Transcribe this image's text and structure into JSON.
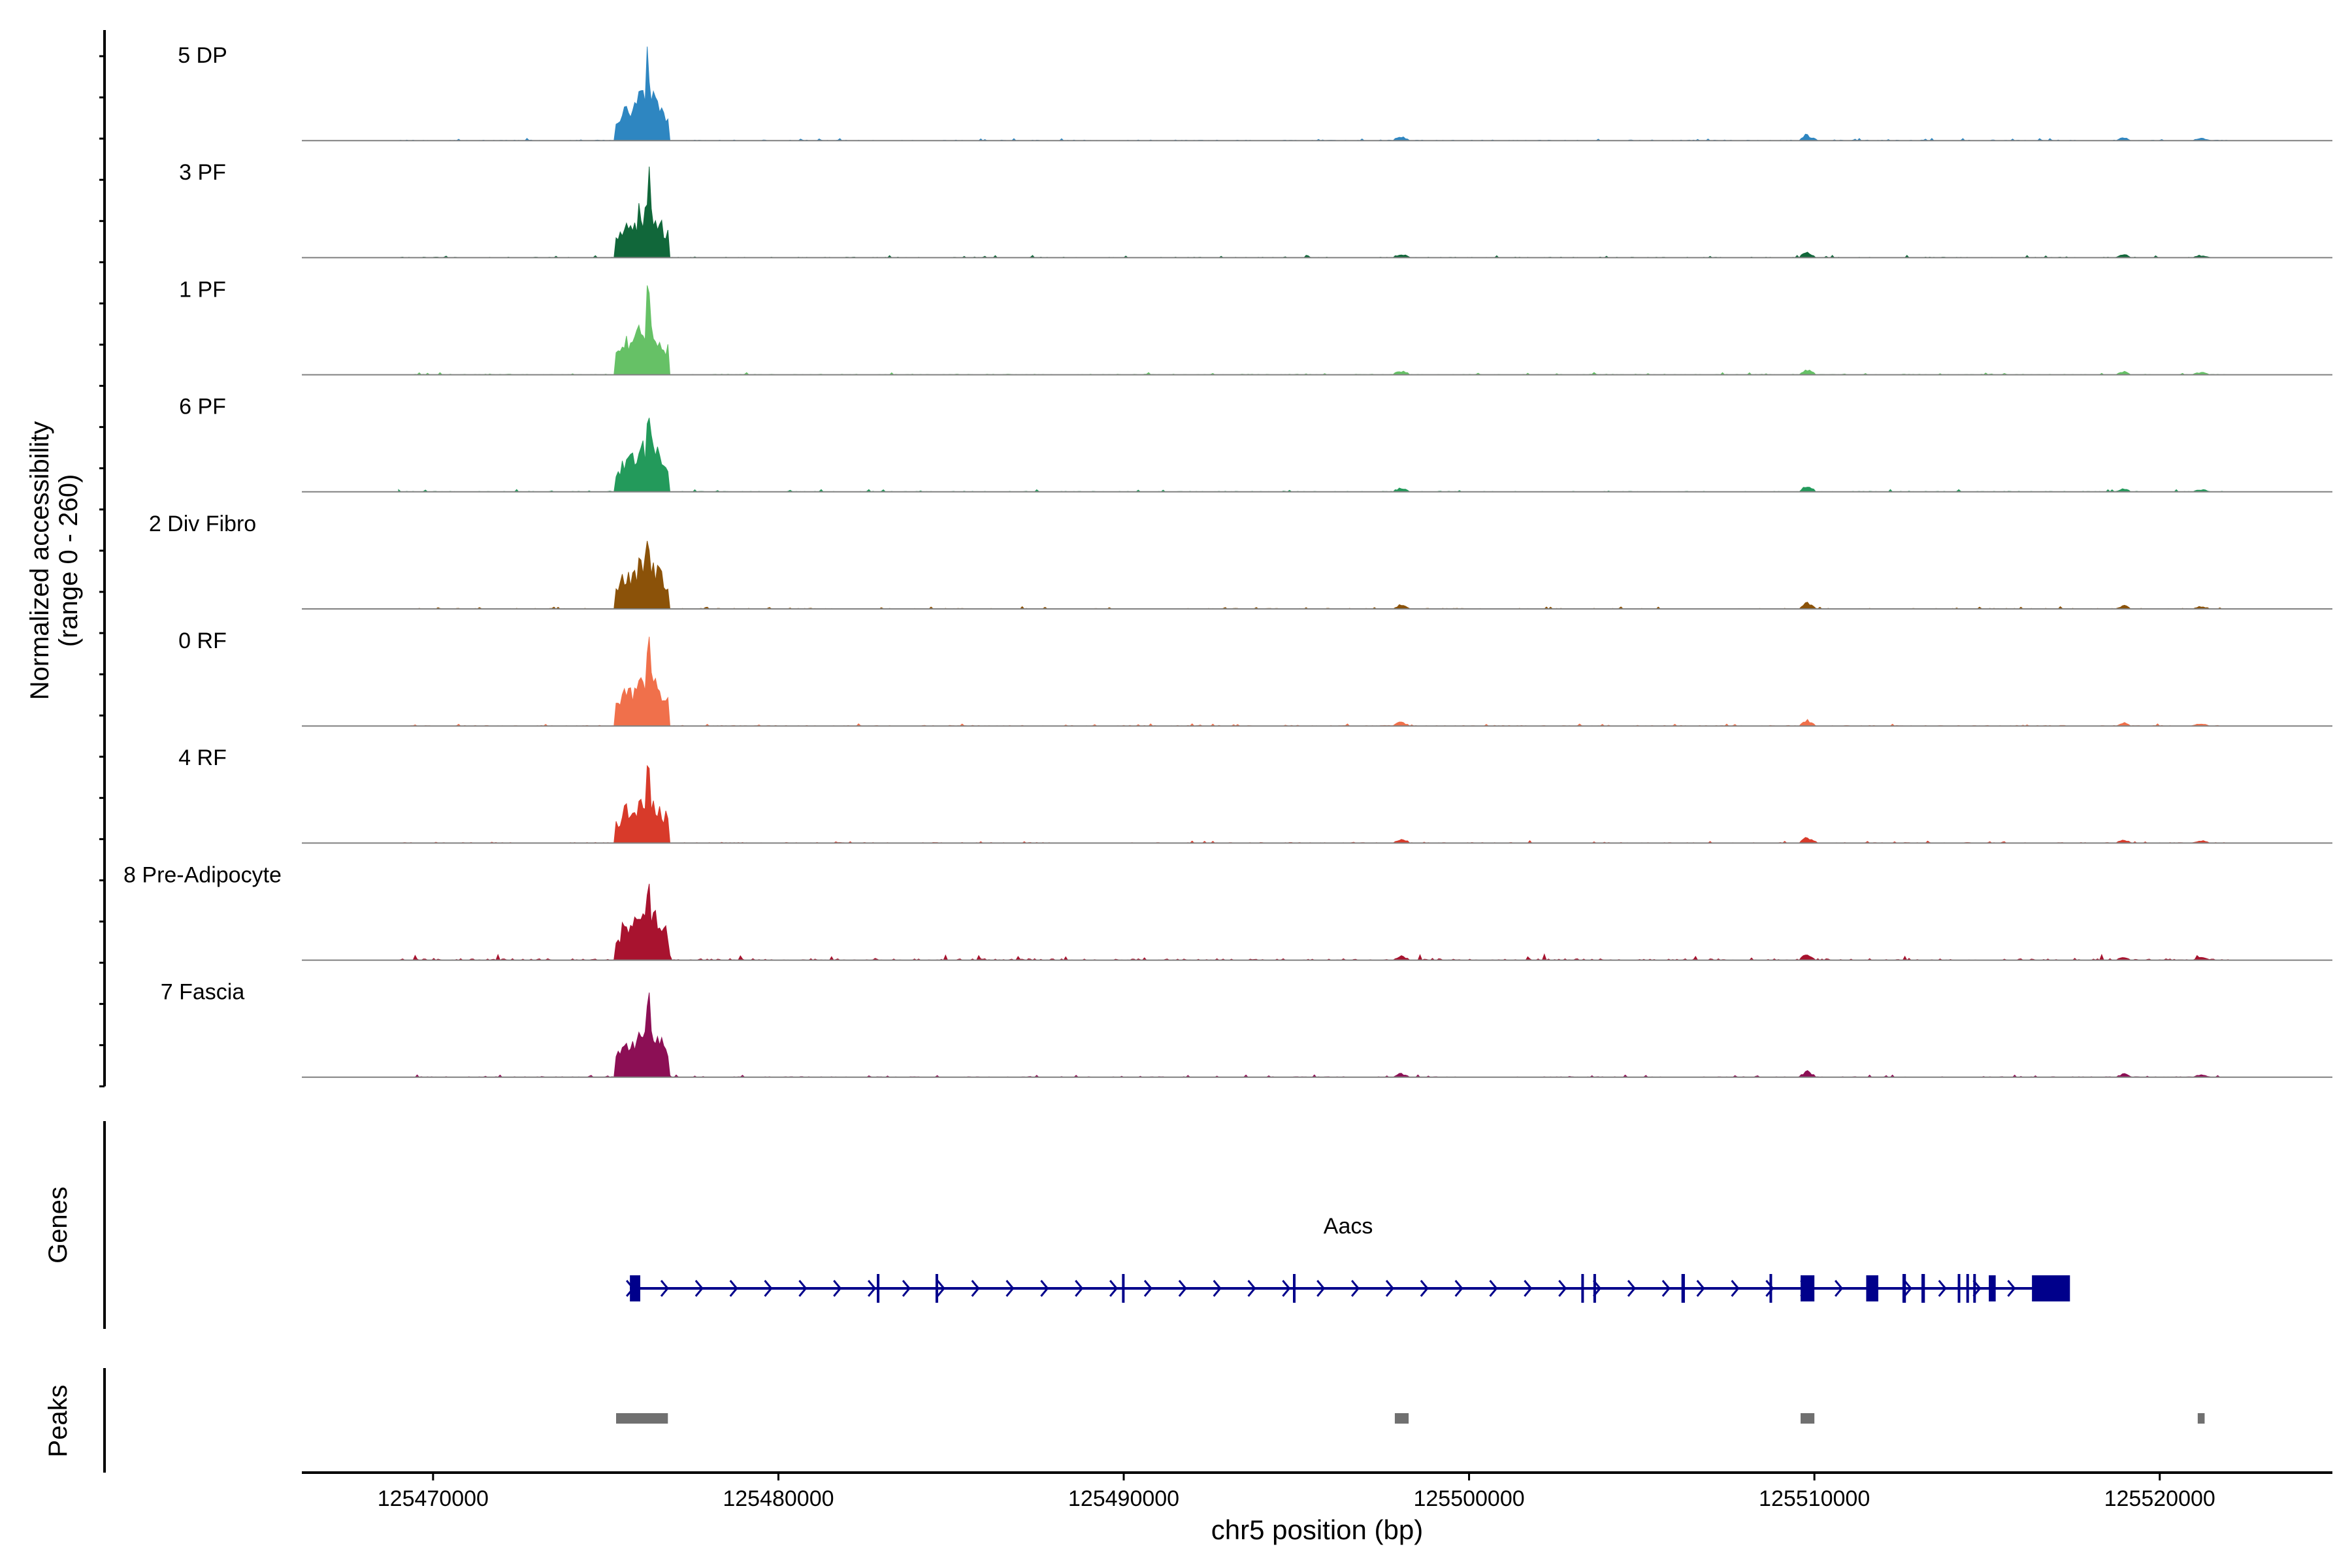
{
  "chart_data": {
    "type": "area",
    "title": "",
    "ylabel_line1": "Normalized accessibility",
    "ylabel_line2": "(range 0 - 260)",
    "xlabel": "chr5 position (bp)",
    "xlim": [
      125466200,
      125525000
    ],
    "ylim": [
      0,
      260
    ],
    "x_ticks": [
      125470000,
      125480000,
      125490000,
      125500000,
      125510000,
      125520000
    ],
    "x_tick_labels": [
      "125470000",
      "125480000",
      "125490000",
      "125500000",
      "125510000",
      "125520000"
    ],
    "genes_label": "Genes",
    "peaks_label": "Peaks",
    "series": [
      {
        "name": "5 DP",
        "color": "#2e86c1"
      },
      {
        "name": "3 PF",
        "color": "#11673a"
      },
      {
        "name": "1 PF",
        "color": "#66c166"
      },
      {
        "name": "6 PF",
        "color": "#239a5b"
      },
      {
        "name": "2 Div Fibro",
        "color": "#8b5209"
      },
      {
        "name": "0 RF",
        "color": "#f0704b"
      },
      {
        "name": "4 RF",
        "color": "#d83a2a"
      },
      {
        "name": "8 Pre-Adipocyte",
        "color": "#a8132f"
      },
      {
        "name": "7 Fascia",
        "color": "#8c0f55"
      }
    ],
    "peak_signal": [
      {
        "start": 125475300,
        "end": 125476800,
        "heights": [
          95,
          120,
          120,
          110,
          120,
          160,
          140,
          255,
          160,
          140,
          130,
          120
        ]
      },
      {
        "start": 125497850,
        "end": 125498250,
        "heights": [
          8,
          10,
          12,
          12,
          12,
          10,
          8,
          8
        ]
      },
      {
        "start": 125509600,
        "end": 125510000,
        "heights": [
          10,
          14,
          18,
          18,
          18,
          14,
          12,
          10
        ]
      },
      {
        "start": 125518800,
        "end": 125519100,
        "heights": [
          6,
          8,
          10,
          10,
          9,
          7
        ]
      },
      {
        "start": 125521000,
        "end": 125521400,
        "heights": [
          5,
          6,
          7,
          7,
          6,
          5
        ]
      }
    ],
    "gene": {
      "name": "Aacs",
      "strand": "+",
      "color": "#00008b",
      "start": 125475700,
      "end": 125517300,
      "exons": [
        {
          "start": 125475700,
          "end": 125476000
        },
        {
          "start": 125482850,
          "end": 125482900
        },
        {
          "start": 125484550,
          "end": 125484600
        },
        {
          "start": 125489950,
          "end": 125490000
        },
        {
          "start": 125494900,
          "end": 125494960
        },
        {
          "start": 125503250,
          "end": 125503300
        },
        {
          "start": 125503600,
          "end": 125503650
        },
        {
          "start": 125506150,
          "end": 125506250
        },
        {
          "start": 125508700,
          "end": 125508750
        },
        {
          "start": 125509600,
          "end": 125510000
        },
        {
          "start": 125511500,
          "end": 125511850
        },
        {
          "start": 125512550,
          "end": 125512650
        },
        {
          "start": 125513100,
          "end": 125513200
        },
        {
          "start": 125514150,
          "end": 125514200
        },
        {
          "start": 125514400,
          "end": 125514450
        },
        {
          "start": 125514600,
          "end": 125514650
        },
        {
          "start": 125515050,
          "end": 125515250
        },
        {
          "start": 125516300,
          "end": 125517400
        }
      ]
    },
    "peaks": [
      {
        "start": 125475300,
        "end": 125476800
      },
      {
        "start": 125497850,
        "end": 125498250
      },
      {
        "start": 125509600,
        "end": 125510000
      },
      {
        "start": 125521100,
        "end": 125521300
      }
    ],
    "peaks_color": "#707070"
  }
}
